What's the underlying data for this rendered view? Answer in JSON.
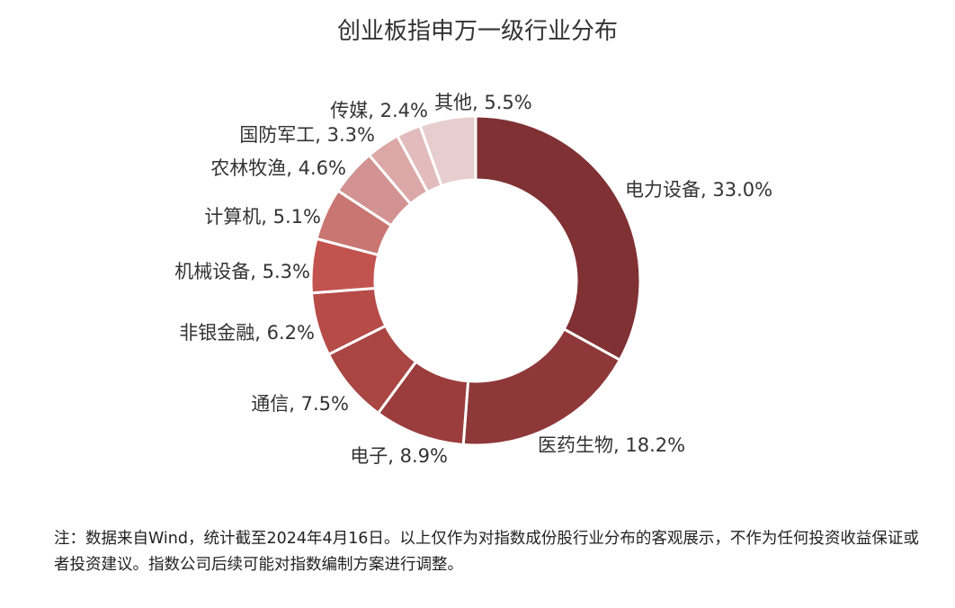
{
  "chart_data": {
    "type": "pie",
    "donut": true,
    "title": "创业板指申万一级行业分布",
    "slices": [
      {
        "label": "电力设备",
        "value": 33.0,
        "display": "33.0%",
        "color": "#7f3134"
      },
      {
        "label": "医药生物",
        "value": 18.2,
        "display": "18.2%",
        "color": "#8e3839"
      },
      {
        "label": "电子",
        "value": 8.9,
        "display": "8.9%",
        "color": "#9b3d3d"
      },
      {
        "label": "通信",
        "value": 7.5,
        "display": "7.5%",
        "color": "#a94543"
      },
      {
        "label": "非银金融",
        "value": 6.2,
        "display": "6.2%",
        "color": "#b64b48"
      },
      {
        "label": "机械设备",
        "value": 5.3,
        "display": "5.3%",
        "color": "#c3534f"
      },
      {
        "label": "计算机",
        "value": 5.1,
        "display": "5.1%",
        "color": "#c97571"
      },
      {
        "label": "农林牧渔",
        "value": 4.6,
        "display": "4.6%",
        "color": "#d29291"
      },
      {
        "label": "国防军工",
        "value": 3.3,
        "display": "3.3%",
        "color": "#dba7a7"
      },
      {
        "label": "传媒",
        "value": 2.4,
        "display": "2.4%",
        "color": "#e2bbbc"
      },
      {
        "label": "其他",
        "value": 5.5,
        "display": "5.5%",
        "color": "#e8cdce"
      }
    ]
  },
  "note": "注：数据来自Wind，统计截至2024年4月16日。以上仅作为对指数成份股行业分布的客观展示，不作为任何投资收益保证或者投资建议。指数公司后续可能对指数编制方案进行调整。"
}
